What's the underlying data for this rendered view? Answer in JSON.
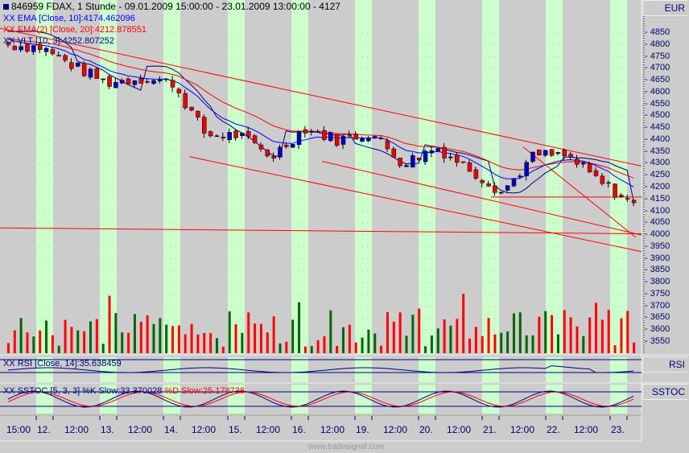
{
  "header": {
    "title": "846959  FDAX, 1 Stunde - 09.01.2009 15:00:00 - 23.01.2009 13:00:00 - 4127",
    "currency": "EUR"
  },
  "legends": {
    "ema10": "XX EMA [Close, 10]:4174.462096",
    "ema20": "XX EMA(2) [Close, 20]:4212.878551",
    "vlt": "XX VLT [10, 3]:4252.807252",
    "rsi": "XX RSI [Close, 14]:35.638459",
    "sstoc_k": "XX SSTOC [5, 3, 3] %K Slow:33.370028",
    "sstoc_d": "%D Slow:25.178738"
  },
  "panels": {
    "rsi_label": "RSI",
    "sstoc_label": "SSTOC"
  },
  "watermark": "www.tradesignal.com",
  "colors": {
    "background": "#cccccc",
    "day_band": "#ccffcc",
    "up_candle": "#0000cc",
    "down_candle": "#ee0000",
    "volume_up": "#006600",
    "volume_down": "#ff0000",
    "ema10": "#0000ff",
    "ema20": "#ff0000",
    "vlt": "#000080",
    "trendline": "#ff0000",
    "axis_text": "#00006e"
  },
  "x_axis": {
    "labels": [
      {
        "text": "15:00",
        "x": 8
      },
      {
        "text": "12.",
        "x": 46
      },
      {
        "text": "12:00",
        "x": 80
      },
      {
        "text": "13.",
        "x": 125
      },
      {
        "text": "12:00",
        "x": 159
      },
      {
        "text": "14.",
        "x": 204
      },
      {
        "text": "12:00",
        "x": 238
      },
      {
        "text": "15.",
        "x": 284
      },
      {
        "text": "12:00",
        "x": 318
      },
      {
        "text": "16.",
        "x": 363
      },
      {
        "text": "12:00",
        "x": 398
      },
      {
        "text": "19.",
        "x": 442
      },
      {
        "text": "12:00",
        "x": 476
      },
      {
        "text": "20.",
        "x": 521
      },
      {
        "text": "12:00",
        "x": 555
      },
      {
        "text": "21.",
        "x": 600
      },
      {
        "text": "12:00",
        "x": 634
      },
      {
        "text": "22.",
        "x": 679
      },
      {
        "text": "12:00",
        "x": 713
      },
      {
        "text": "23.",
        "x": 759
      }
    ]
  },
  "y_axis": {
    "ticks": [
      4850,
      4800,
      4750,
      4700,
      4650,
      4600,
      4550,
      4500,
      4450,
      4400,
      4350,
      4300,
      4250,
      4200,
      4150,
      4100,
      4050,
      4000,
      3950,
      3900,
      3850,
      3800,
      3750,
      3700,
      3650,
      3600,
      3550
    ]
  },
  "chart_data": [
    {
      "type": "candlestick",
      "title": "846959 FDAX, 1 Stunde - 09.01.2009 15:00:00 - 23.01.2009 13:00:00 - 4127",
      "xlabel": "",
      "ylabel": "EUR",
      "ylim": [
        3520,
        4890
      ],
      "categories": [
        "09.01 15:00",
        "12.",
        "12.01 12:00",
        "13.",
        "13.01 12:00",
        "14.",
        "14.01 12:00",
        "15.",
        "15.01 12:00",
        "16.",
        "16.01 12:00",
        "19.",
        "19.01 12:00",
        "20.",
        "20.01 12:00",
        "21.",
        "21.01 12:00",
        "22.",
        "22.01 12:00",
        "23."
      ],
      "close_approx": [
        4800,
        4790,
        4710,
        4640,
        4660,
        4640,
        4420,
        4420,
        4330,
        4450,
        4400,
        4430,
        4300,
        4370,
        4280,
        4180,
        4340,
        4330,
        4220,
        4127
      ],
      "series": [
        {
          "name": "EMA [Close, 10]",
          "last": 4174.462096
        },
        {
          "name": "EMA(2) [Close, 20]",
          "last": 4212.878551
        },
        {
          "name": "VLT [10, 3]",
          "last": 4252.807252
        }
      ],
      "trendlines": [
        {
          "from": [
            0,
            4870
          ],
          "to": [
            797,
            4290
          ]
        },
        {
          "from": [
            235,
            4330
          ],
          "to": [
            797,
            3930
          ]
        },
        {
          "from": [
            400,
            4310
          ],
          "to": [
            797,
            4000
          ]
        },
        {
          "from": [
            0,
            4030
          ],
          "to": [
            797,
            4005
          ]
        },
        {
          "from": [
            610,
            4160
          ],
          "to": [
            797,
            4160
          ]
        },
        {
          "from": [
            650,
            4370
          ],
          "to": [
            790,
            3990
          ]
        }
      ]
    },
    {
      "type": "bar",
      "title": "Volume",
      "colors_note": "green = up bar, red = down bar"
    },
    {
      "type": "line",
      "title": "RSI [Close, 14]",
      "last": 35.638459,
      "levels": [
        70,
        30
      ]
    },
    {
      "type": "line",
      "title": "SSTOC [5, 3, 3]",
      "series": [
        {
          "name": "%K Slow",
          "last": 33.370028
        },
        {
          "name": "%D Slow",
          "last": 25.178738
        }
      ],
      "levels": [
        80,
        20
      ]
    }
  ]
}
